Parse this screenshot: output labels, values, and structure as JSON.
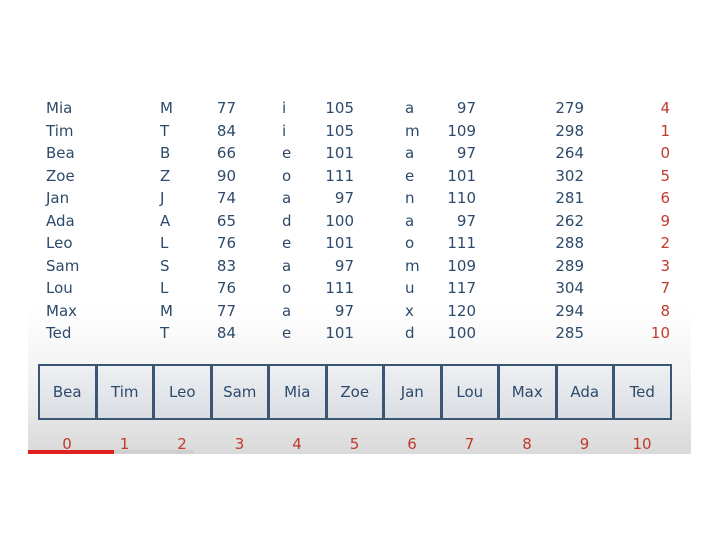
{
  "rows": [
    {
      "name": "Mia",
      "c1": "M",
      "v1": "77",
      "c2": "i",
      "v2": "105",
      "c3": "a",
      "v3": "97",
      "sum": "279",
      "mod": "4"
    },
    {
      "name": "Tim",
      "c1": "T",
      "v1": "84",
      "c2": "i",
      "v2": "105",
      "c3": "m",
      "v3": "109",
      "sum": "298",
      "mod": "1"
    },
    {
      "name": "Bea",
      "c1": "B",
      "v1": "66",
      "c2": "e",
      "v2": "101",
      "c3": "a",
      "v3": "97",
      "sum": "264",
      "mod": "0"
    },
    {
      "name": "Zoe",
      "c1": "Z",
      "v1": "90",
      "c2": "o",
      "v2": "111",
      "c3": "e",
      "v3": "101",
      "sum": "302",
      "mod": "5"
    },
    {
      "name": "Jan",
      "c1": "J",
      "v1": "74",
      "c2": "a",
      "v2": "97",
      "c3": "n",
      "v3": "110",
      "sum": "281",
      "mod": "6"
    },
    {
      "name": "Ada",
      "c1": "A",
      "v1": "65",
      "c2": "d",
      "v2": "100",
      "c3": "a",
      "v3": "97",
      "sum": "262",
      "mod": "9"
    },
    {
      "name": "Leo",
      "c1": "L",
      "v1": "76",
      "c2": "e",
      "v2": "101",
      "c3": "o",
      "v3": "111",
      "sum": "288",
      "mod": "2"
    },
    {
      "name": "Sam",
      "c1": "S",
      "v1": "83",
      "c2": "a",
      "v2": "97",
      "c3": "m",
      "v3": "109",
      "sum": "289",
      "mod": "3"
    },
    {
      "name": "Lou",
      "c1": "L",
      "v1": "76",
      "c2": "o",
      "v2": "111",
      "c3": "u",
      "v3": "117",
      "sum": "304",
      "mod": "7"
    },
    {
      "name": "Max",
      "c1": "M",
      "v1": "77",
      "c2": "a",
      "v2": "97",
      "c3": "x",
      "v3": "120",
      "sum": "294",
      "mod": "8"
    },
    {
      "name": "Ted",
      "c1": "T",
      "v1": "84",
      "c2": "e",
      "v2": "101",
      "c3": "d",
      "v3": "100",
      "sum": "285",
      "mod": "10"
    }
  ],
  "hash_table": {
    "slots": [
      "Bea",
      "Tim",
      "Leo",
      "Sam",
      "Mia",
      "Zoe",
      "Jan",
      "Lou",
      "Max",
      "Ada",
      "Ted"
    ],
    "indices": [
      "0",
      "1",
      "2",
      "3",
      "4",
      "5",
      "6",
      "7",
      "8",
      "9",
      "10"
    ]
  },
  "video_progress": {
    "played_fraction": 0.13,
    "buffered_fraction": 0.25
  },
  "colors": {
    "text": "#2d4a6b",
    "accent": "#c0392b",
    "box_border": "#3b5574",
    "progress": "#e02020"
  }
}
